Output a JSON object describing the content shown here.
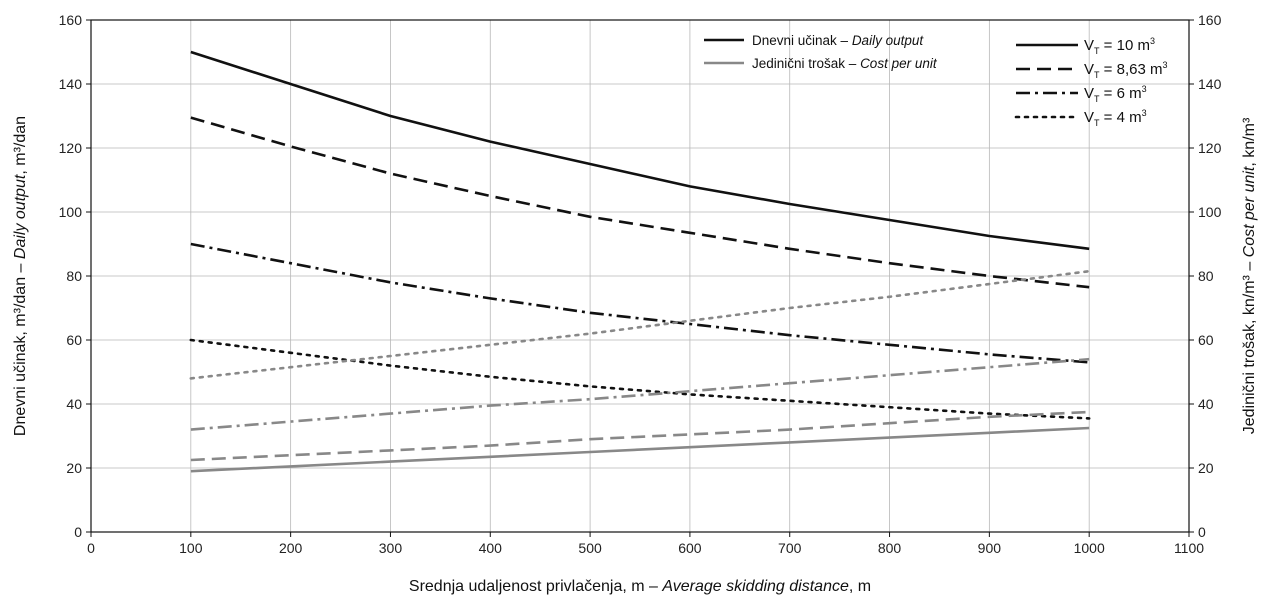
{
  "chart_data": {
    "type": "line",
    "xlabel_main": "Srednja udaljenost privlačenja, m – ",
    "xlabel_italic": "Average skidding distance",
    "xlabel_unit": ", m",
    "ylabel_left_main": "Dnevni učinak, m³/dan – ",
    "ylabel_left_italic": "Daily output",
    "ylabel_left_unit": ", m³/dan",
    "ylabel_right_main": "Jedinični trošak, kn/m³ – ",
    "ylabel_right_italic": "Cost per unit",
    "ylabel_right_unit": ", kn/m³",
    "xlim": [
      0,
      1100
    ],
    "ylim_left": [
      0,
      160
    ],
    "ylim_right": [
      0,
      160
    ],
    "x_ticks": [
      0,
      100,
      200,
      300,
      400,
      500,
      600,
      700,
      800,
      900,
      1000,
      1100
    ],
    "y_ticks": [
      0,
      20,
      40,
      60,
      80,
      100,
      120,
      140,
      160
    ],
    "grid": true,
    "legend_type": {
      "placement": "top-center",
      "entries": [
        {
          "label_main": "Dnevni učinak – ",
          "label_italic": "Daily output",
          "color": "#111111"
        },
        {
          "label_main": "Jedinični trošak – ",
          "label_italic": "Cost per unit",
          "color": "#888888"
        }
      ]
    },
    "legend_volume": {
      "placement": "top-right",
      "entries": [
        {
          "label": "V",
          "sub": "T",
          "value": " = 10 m",
          "sup": "3",
          "dash": "solid"
        },
        {
          "label": "V",
          "sub": "T",
          "value": " = 8,63 m",
          "sup": "3",
          "dash": "dash"
        },
        {
          "label": "V",
          "sub": "T",
          "value": " = 6 m",
          "sup": "3",
          "dash": "dashdot"
        },
        {
          "label": "V",
          "sub": "T",
          "value": " = 4 m",
          "sup": "3",
          "dash": "dot"
        }
      ]
    },
    "x": [
      100,
      200,
      300,
      400,
      500,
      600,
      700,
      800,
      900,
      1000
    ],
    "series": [
      {
        "group": "daily_output",
        "volume": "10",
        "dash": "solid",
        "color": "#111111",
        "values": [
          150,
          140,
          130,
          122,
          115,
          108,
          102.5,
          97.5,
          92.5,
          88.5
        ]
      },
      {
        "group": "daily_output",
        "volume": "8,63",
        "dash": "dash",
        "color": "#111111",
        "values": [
          129.5,
          120.5,
          112,
          105,
          98.5,
          93.5,
          88.5,
          84,
          80,
          76.5
        ]
      },
      {
        "group": "daily_output",
        "volume": "6",
        "dash": "dashdot",
        "color": "#111111",
        "values": [
          90,
          84,
          78,
          73,
          68.5,
          65,
          61.5,
          58.5,
          55.5,
          53
        ]
      },
      {
        "group": "daily_output",
        "volume": "4",
        "dash": "dot",
        "color": "#111111",
        "values": [
          60,
          56,
          52,
          48.5,
          45.5,
          43,
          41,
          39,
          37,
          35.5
        ]
      },
      {
        "group": "cost_per_unit",
        "volume": "10",
        "dash": "solid",
        "color": "#888888",
        "values": [
          19,
          20.5,
          22,
          23.5,
          25,
          26.5,
          28,
          29.5,
          31,
          32.5
        ]
      },
      {
        "group": "cost_per_unit",
        "volume": "8,63",
        "dash": "dash",
        "color": "#888888",
        "values": [
          22.5,
          24,
          25.5,
          27,
          29,
          30.5,
          32,
          34,
          36,
          37.5
        ]
      },
      {
        "group": "cost_per_unit",
        "volume": "6",
        "dash": "dashdot",
        "color": "#888888",
        "values": [
          32,
          34.5,
          37,
          39.5,
          41.5,
          44,
          46.5,
          49,
          51.5,
          54
        ]
      },
      {
        "group": "cost_per_unit",
        "volume": "4",
        "dash": "dot",
        "color": "#888888",
        "values": [
          48,
          51.5,
          55,
          58.5,
          62,
          66,
          70,
          73.5,
          77.5,
          81.5
        ]
      }
    ]
  }
}
